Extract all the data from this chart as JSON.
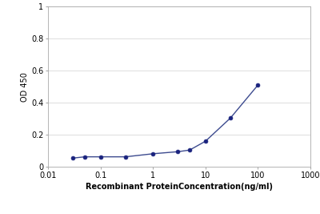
{
  "x": [
    0.03,
    0.05,
    0.1,
    0.3,
    1.0,
    3.0,
    5.0,
    10.0,
    30.0,
    100.0
  ],
  "y": [
    0.055,
    0.063,
    0.063,
    0.063,
    0.082,
    0.095,
    0.105,
    0.16,
    0.305,
    0.51
  ],
  "line_color": "#3d4b8f",
  "marker_color": "#1a237e",
  "marker_size": 3.5,
  "line_width": 1.0,
  "xlabel": "Recombinant ProteinConcentration(ng/ml)",
  "ylabel": "OD 450",
  "xlim": [
    0.01,
    1000
  ],
  "ylim": [
    0,
    1.0
  ],
  "yticks": [
    0,
    0.2,
    0.4,
    0.6,
    0.8,
    1
  ],
  "xtick_labels": [
    "0.01",
    "0.1",
    "1",
    "10",
    "100",
    "1000"
  ],
  "xtick_values": [
    0.01,
    0.1,
    1,
    10,
    100,
    1000
  ],
  "background_color": "#ffffff",
  "label_fontsize": 7,
  "tick_fontsize": 7,
  "grid_color": "#d8d8d8",
  "spine_color": "#aaaaaa"
}
